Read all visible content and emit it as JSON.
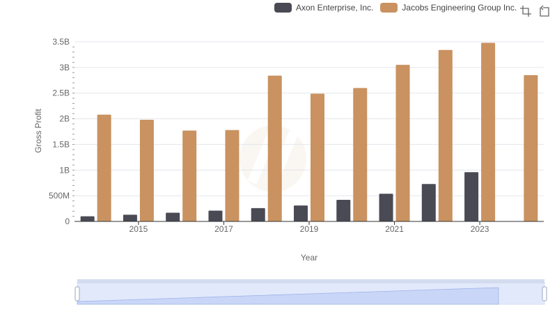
{
  "legend": [
    {
      "name": "Axon Enterprise, Inc.",
      "color": "#4a4a55"
    },
    {
      "name": "Jacobs Engineering Group Inc.",
      "color": "#c99260"
    }
  ],
  "toolbox": {
    "icons": [
      "zoom-icon",
      "restore-icon"
    ]
  },
  "chart_data": {
    "type": "bar",
    "xlabel": "Year",
    "ylabel": "Gross Profit",
    "x_ticks": [
      "2015",
      "2017",
      "2019",
      "2021",
      "2023"
    ],
    "y_ticks": [
      "0",
      "500M",
      "1B",
      "1.5B",
      "2B",
      "2.5B",
      "3B",
      "3.5B"
    ],
    "ylim": [
      0,
      3500000000
    ],
    "categories": [
      "2014",
      "2015",
      "2016",
      "2017",
      "2018",
      "2019",
      "2020",
      "2021",
      "2022",
      "2023",
      "2024"
    ],
    "series": [
      {
        "name": "Axon Enterprise, Inc.",
        "color": "#4a4a55",
        "values": [
          100000000,
          130000000,
          170000000,
          210000000,
          260000000,
          310000000,
          420000000,
          540000000,
          730000000,
          960000000,
          null
        ]
      },
      {
        "name": "Jacobs Engineering Group Inc.",
        "color": "#c99260",
        "values": [
          2080000000,
          1980000000,
          1770000000,
          1780000000,
          2840000000,
          2490000000,
          2600000000,
          3050000000,
          3340000000,
          3480000000,
          2850000000
        ]
      }
    ],
    "grid": true,
    "legend_position": "top-right"
  }
}
